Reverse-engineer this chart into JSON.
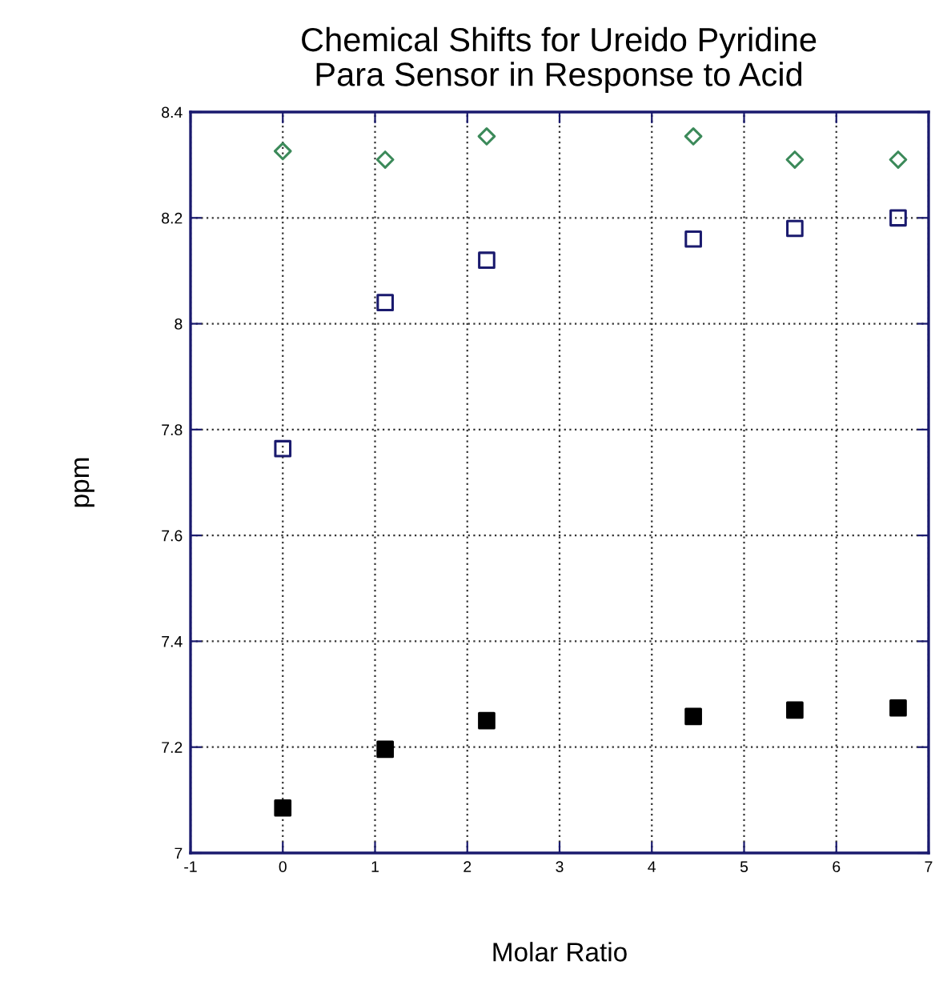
{
  "chart_data": {
    "type": "scatter",
    "title": "Chemical Shifts for Ureido Pyridine\nPara Sensor in Response to Acid",
    "xlabel": "Molar Ratio",
    "ylabel": "ppm",
    "x": [
      0,
      1.11,
      2.21,
      4.45,
      5.55,
      6.67
    ],
    "series": [
      {
        "color": "#3c8a5a",
        "marker": "diamond",
        "values": [
          8.326,
          8.31,
          8.354,
          8.354,
          8.31,
          8.31
        ]
      },
      {
        "color": "#1a1a6e",
        "marker": "square",
        "values": [
          7.764,
          8.04,
          8.12,
          8.16,
          8.18,
          8.2
        ]
      },
      {
        "color": "#000000",
        "marker": "square",
        "values": [
          7.085,
          7.196,
          7.25,
          7.258,
          7.27,
          7.274
        ]
      }
    ],
    "xlim": [
      -1,
      7
    ],
    "xticks": [
      -1,
      0,
      1,
      2,
      3,
      4,
      5,
      6,
      7
    ],
    "ylim": [
      7,
      8.4
    ],
    "yticks": [
      7,
      7.2,
      7.4,
      7.6,
      7.8,
      8,
      8.2,
      8.4
    ],
    "grid": true,
    "legend": false
  }
}
